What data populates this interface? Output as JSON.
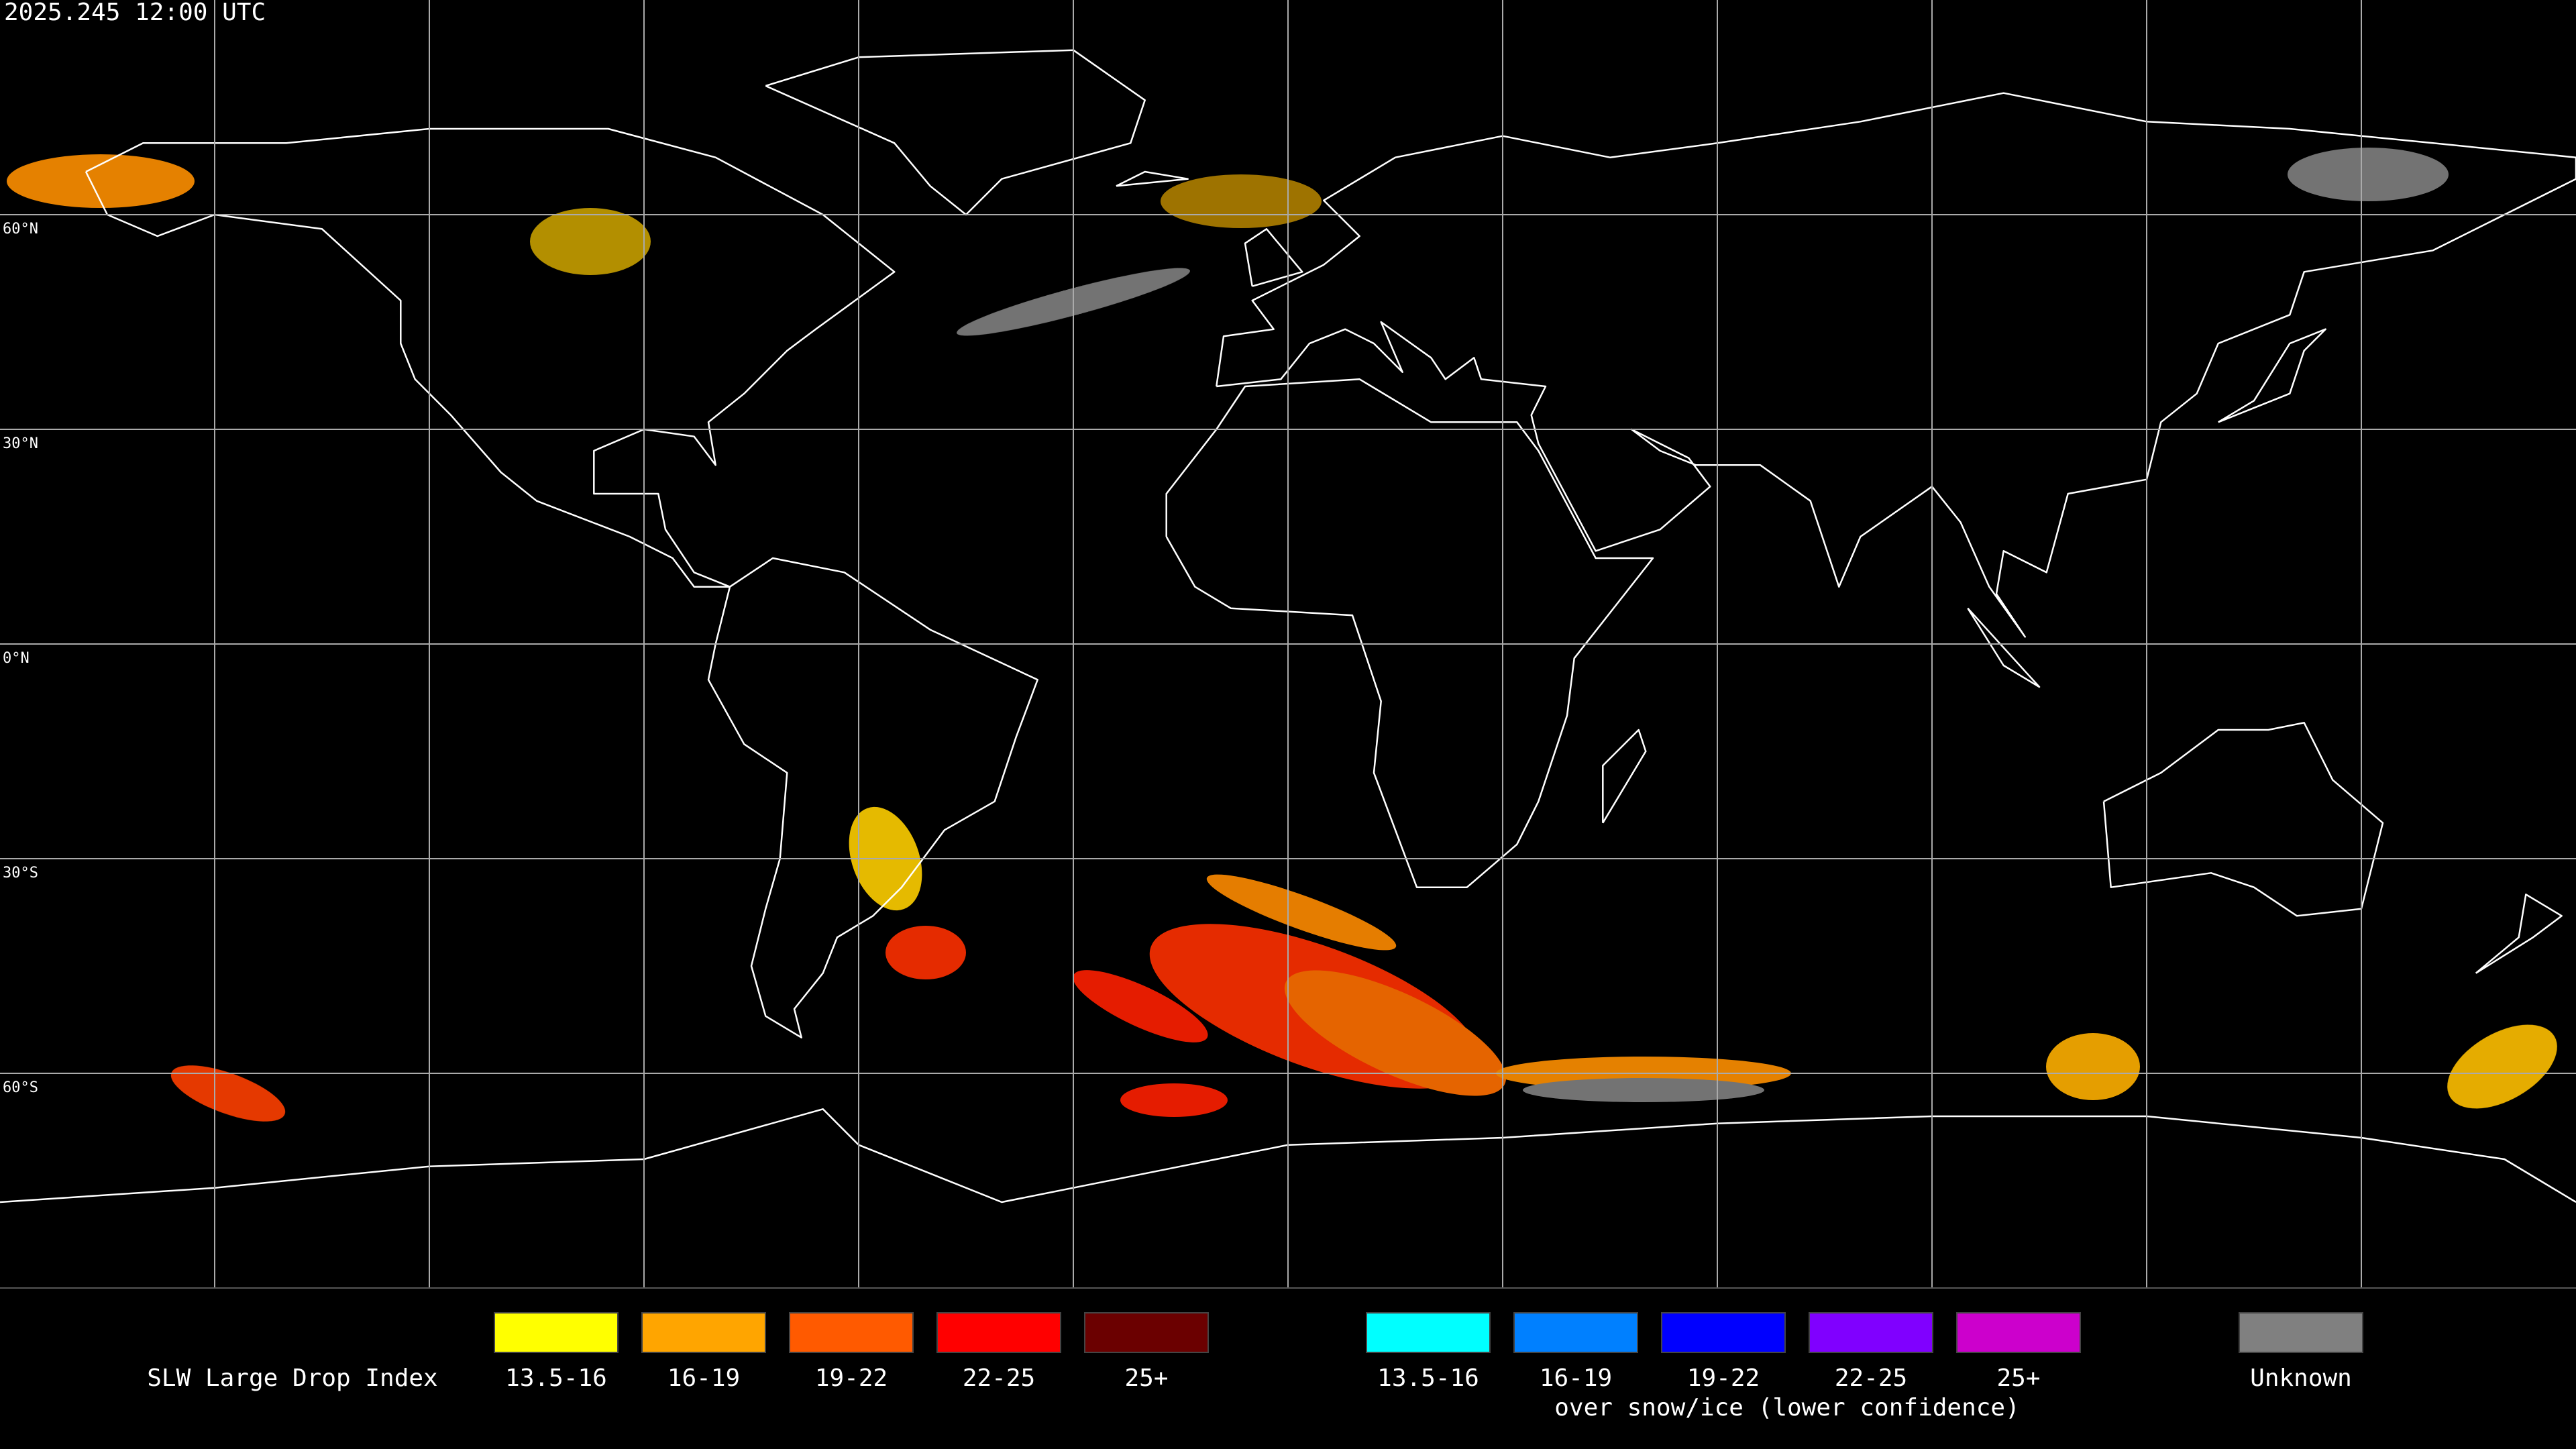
{
  "header": {
    "timestamp": "2025.245 12:00 UTC"
  },
  "map": {
    "latitude_labels": [
      "60°N",
      "30°N",
      "0°N",
      "30°S",
      "60°S"
    ]
  },
  "legend": {
    "title": "SLW Large Drop Index",
    "groups": [
      {
        "items": [
          {
            "label": "13.5-16",
            "color": "#ffff00"
          },
          {
            "label": "16-19",
            "color": "#ffa500"
          },
          {
            "label": "19-22",
            "color": "#ff5a00"
          },
          {
            "label": "22-25",
            "color": "#ff0000"
          },
          {
            "label": "25+",
            "color": "#6b0000"
          }
        ]
      },
      {
        "items": [
          {
            "label": "13.5-16",
            "color": "#00ffff"
          },
          {
            "label": "16-19",
            "color": "#0080ff"
          },
          {
            "label": "19-22",
            "color": "#0000ff"
          },
          {
            "label": "22-25",
            "color": "#8000ff"
          },
          {
            "label": "25+",
            "color": "#cc00cc"
          }
        ],
        "caption": "over snow/ice (lower confidence)"
      },
      {
        "items": [
          {
            "label": "Unknown",
            "color": "#808080"
          }
        ]
      }
    ]
  }
}
